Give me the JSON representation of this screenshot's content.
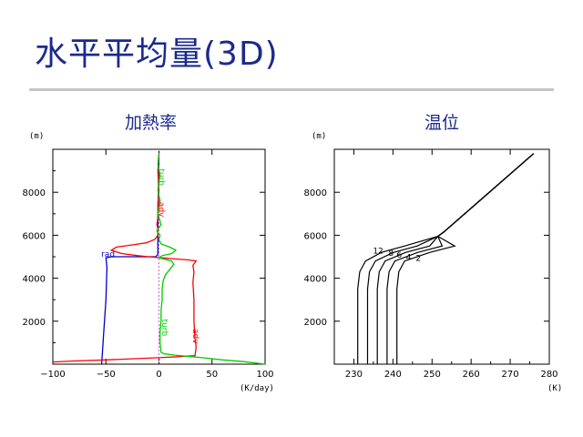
{
  "slide": {
    "title": "水平平均量(3D)"
  },
  "chart_data": [
    {
      "type": "line",
      "title": "加熱率",
      "y_unit": "(m)",
      "x_unit": "(K/day)",
      "xlim": [
        -100,
        100
      ],
      "ylim": [
        0,
        10000
      ],
      "x_ticks": [
        "-100",
        "-50",
        "0",
        "50",
        "100"
      ],
      "y_ticks": [
        "2000",
        "4000",
        "6000",
        "8000"
      ],
      "grid": false,
      "series": [
        {
          "name": "rad",
          "color": "#0000cc",
          "points": [
            [
              -54,
              0
            ],
            [
              -52,
              1500
            ],
            [
              -50,
              3000
            ],
            [
              -49,
              4500
            ],
            [
              -50,
              4950
            ],
            [
              -45,
              5000
            ],
            [
              -20,
              5000
            ],
            [
              -3,
              5000
            ],
            [
              -1,
              5100
            ],
            [
              -1,
              6500
            ],
            [
              0,
              9800
            ]
          ]
        },
        {
          "name": "adv",
          "color": "#ff0000",
          "points": [
            [
              -100,
              100
            ],
            [
              -80,
              150
            ],
            [
              -50,
              200
            ],
            [
              0,
              300
            ],
            [
              20,
              350
            ],
            [
              34,
              400
            ],
            [
              35,
              800
            ],
            [
              34,
              1200
            ],
            [
              33,
              2000
            ],
            [
              33,
              3000
            ],
            [
              32,
              3800
            ],
            [
              33,
              4300
            ],
            [
              32,
              4600
            ],
            [
              35,
              4800
            ],
            [
              28,
              4850
            ],
            [
              15,
              4900
            ],
            [
              2,
              4950
            ],
            [
              -10,
              5000
            ],
            [
              -20,
              5050
            ],
            [
              -35,
              5150
            ],
            [
              -45,
              5300
            ],
            [
              -40,
              5450
            ],
            [
              -25,
              5550
            ],
            [
              -12,
              5650
            ],
            [
              -4,
              5800
            ],
            [
              -1,
              6000
            ],
            [
              -1,
              6300
            ],
            [
              -2,
              6500
            ],
            [
              -1,
              6800
            ],
            [
              -1,
              7500
            ],
            [
              0,
              8000
            ],
            [
              -1,
              9000
            ],
            [
              0,
              9800
            ]
          ]
        },
        {
          "name": "turb",
          "color": "#00cc00",
          "points": [
            [
              100,
              0
            ],
            [
              80,
              120
            ],
            [
              60,
              200
            ],
            [
              45,
              280
            ],
            [
              30,
              350
            ],
            [
              15,
              420
            ],
            [
              5,
              480
            ],
            [
              2,
              550
            ],
            [
              1,
              1000
            ],
            [
              1,
              1500
            ],
            [
              2,
              2000
            ],
            [
              2,
              2500
            ],
            [
              3,
              3000
            ],
            [
              3,
              3500
            ],
            [
              4,
              3900
            ],
            [
              6,
              4150
            ],
            [
              10,
              4400
            ],
            [
              14,
              4650
            ],
            [
              12,
              4800
            ],
            [
              5,
              4880
            ],
            [
              0,
              4950
            ],
            [
              3,
              5050
            ],
            [
              12,
              5150
            ],
            [
              16,
              5300
            ],
            [
              10,
              5450
            ],
            [
              2,
              5600
            ],
            [
              0,
              5800
            ],
            [
              1,
              6000
            ],
            [
              -2,
              6200
            ],
            [
              2,
              6500
            ],
            [
              -1,
              7000
            ],
            [
              1,
              7600
            ],
            [
              -1,
              8100
            ],
            [
              1,
              8800
            ],
            [
              -1,
              9300
            ],
            [
              0,
              9800
            ]
          ]
        }
      ],
      "series_labels": [
        {
          "text": "rad",
          "color": "#0000cc",
          "x": -48,
          "y": 5000
        },
        {
          "text": "adv",
          "color": "#ff0000",
          "x": 0,
          "y": 7200
        },
        {
          "text": "turb",
          "color": "#00cc00",
          "x": 0,
          "y": 8700
        },
        {
          "text": "turb",
          "color": "#00cc00",
          "x": 3,
          "y": 1700
        },
        {
          "text": "adv",
          "color": "#ff0000",
          "x": 32,
          "y": 1300
        }
      ]
    },
    {
      "type": "line",
      "title": "温位",
      "y_unit": "(m)",
      "x_unit": "(K)",
      "xlim": [
        225,
        280
      ],
      "ylim": [
        0,
        10000
      ],
      "x_ticks": [
        "230",
        "240",
        "250",
        "260",
        "270",
        "280"
      ],
      "y_ticks": [
        "2000",
        "4000",
        "6000",
        "8000"
      ],
      "grid": false,
      "contour_labels": [
        "12",
        "8",
        "6",
        "4",
        "2"
      ],
      "series": [
        {
          "name": "",
          "color": "#000000",
          "base": 231
        },
        {
          "name": "",
          "color": "#000000",
          "base": 233.5
        },
        {
          "name": "",
          "color": "#000000",
          "base": 236
        },
        {
          "name": "",
          "color": "#000000",
          "base": 238.5
        },
        {
          "name": "",
          "color": "#000000",
          "base": 241
        }
      ]
    }
  ]
}
